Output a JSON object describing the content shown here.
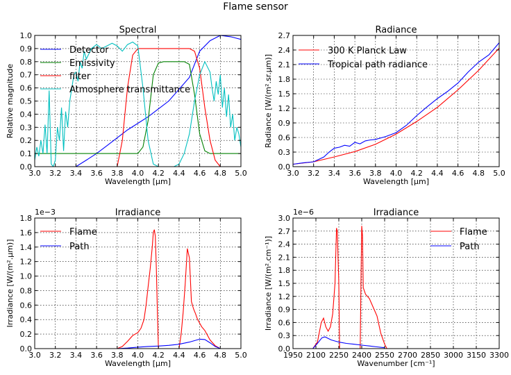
{
  "figure": {
    "suptitle": "Flame sensor"
  },
  "chart_data": [
    {
      "id": "spectral",
      "type": "line",
      "title": "Spectral",
      "xlabel": "Wavelength [μm]",
      "ylabel": "Relative magnitude",
      "xlim": [
        3.0,
        5.0
      ],
      "ylim": [
        0.0,
        1.0
      ],
      "xticks": [
        "3.0",
        "3.2",
        "3.4",
        "3.6",
        "3.8",
        "4.0",
        "4.2",
        "4.4",
        "4.6",
        "4.8",
        "5.0"
      ],
      "yticks": [
        "0.0",
        "0.1",
        "0.2",
        "0.3",
        "0.4",
        "0.5",
        "0.6",
        "0.7",
        "0.8",
        "0.9",
        "1.0"
      ],
      "grid": true,
      "legend": "top-left",
      "series": [
        {
          "name": "Detector",
          "color": "#0000ff",
          "x": [
            3.0,
            3.35,
            3.4,
            3.5,
            3.6,
            3.7,
            3.8,
            3.9,
            4.0,
            4.1,
            4.2,
            4.3,
            4.4,
            4.5,
            4.6,
            4.7,
            4.8,
            4.9,
            5.0
          ],
          "y": [
            0.0,
            0.0,
            0.0,
            0.05,
            0.1,
            0.16,
            0.22,
            0.28,
            0.33,
            0.38,
            0.44,
            0.5,
            0.59,
            0.68,
            0.88,
            0.96,
            1.0,
            0.99,
            0.97
          ]
        },
        {
          "name": "Emissivity",
          "color": "#008000",
          "x": [
            3.0,
            4.0,
            4.05,
            4.1,
            4.15,
            4.2,
            4.25,
            4.35,
            4.45,
            4.5,
            4.55,
            4.6,
            4.65,
            4.7,
            5.0
          ],
          "y": [
            0.1,
            0.1,
            0.15,
            0.35,
            0.7,
            0.79,
            0.8,
            0.8,
            0.8,
            0.78,
            0.55,
            0.25,
            0.12,
            0.1,
            0.1
          ]
        },
        {
          "name": "filter",
          "color": "#ff0000",
          "x": [
            3.0,
            3.8,
            3.85,
            3.9,
            3.95,
            4.0,
            4.1,
            4.3,
            4.5,
            4.55,
            4.6,
            4.65,
            4.7,
            4.75,
            4.8,
            5.0
          ],
          "y": [
            0.0,
            0.0,
            0.2,
            0.6,
            0.85,
            0.9,
            0.9,
            0.9,
            0.9,
            0.88,
            0.75,
            0.45,
            0.2,
            0.05,
            0.0,
            0.0
          ]
        },
        {
          "name": "Atmosphere transmittance",
          "color": "#00bfbf",
          "x": [
            3.0,
            3.02,
            3.04,
            3.06,
            3.08,
            3.1,
            3.12,
            3.14,
            3.16,
            3.18,
            3.2,
            3.22,
            3.24,
            3.26,
            3.28,
            3.3,
            3.32,
            3.34,
            3.36,
            3.38,
            3.4,
            3.42,
            3.44,
            3.46,
            3.48,
            3.5,
            3.55,
            3.6,
            3.65,
            3.7,
            3.75,
            3.8,
            3.85,
            3.9,
            3.95,
            4.0,
            4.05,
            4.1,
            4.15,
            4.2,
            4.25,
            4.3,
            4.35,
            4.4,
            4.45,
            4.5,
            4.55,
            4.6,
            4.65,
            4.7,
            4.72,
            4.74,
            4.76,
            4.78,
            4.8,
            4.82,
            4.84,
            4.86,
            4.88,
            4.9,
            4.92,
            4.94,
            4.96,
            4.98,
            5.0
          ],
          "y": [
            0.05,
            0.15,
            0.08,
            0.2,
            0.1,
            0.32,
            0.1,
            0.58,
            0.02,
            0.0,
            0.05,
            0.3,
            0.2,
            0.45,
            0.12,
            0.42,
            0.3,
            0.5,
            0.6,
            0.7,
            0.72,
            0.65,
            0.8,
            0.75,
            0.88,
            0.82,
            0.9,
            0.93,
            0.9,
            0.92,
            0.94,
            0.92,
            0.88,
            0.93,
            0.95,
            0.92,
            0.6,
            0.2,
            0.02,
            0.0,
            0.0,
            0.0,
            0.0,
            0.02,
            0.1,
            0.25,
            0.5,
            0.7,
            0.8,
            0.72,
            0.6,
            0.5,
            0.65,
            0.55,
            0.7,
            0.45,
            0.6,
            0.38,
            0.55,
            0.3,
            0.4,
            0.2,
            0.3,
            0.25,
            0.15
          ]
        }
      ]
    },
    {
      "id": "radiance",
      "type": "line",
      "title": "Radiance",
      "xlabel": "Wavelength [μm]",
      "ylabel": "Radiance [W/(m².sr.μm)]",
      "xlim": [
        3.0,
        5.0
      ],
      "ylim": [
        0.0,
        2.7
      ],
      "xticks": [
        "3.0",
        "3.2",
        "3.4",
        "3.6",
        "3.8",
        "4.0",
        "4.2",
        "4.4",
        "4.6",
        "4.8",
        "5.0"
      ],
      "yticks": [
        "0.0",
        "0.3",
        "0.6",
        "0.9",
        "1.2",
        "1.5",
        "1.8",
        "2.1",
        "2.4",
        "2.7"
      ],
      "grid": true,
      "legend": "top-left",
      "series": [
        {
          "name": "300 K Planck Law",
          "color": "#ff0000",
          "x": [
            3.0,
            3.2,
            3.4,
            3.6,
            3.8,
            4.0,
            4.2,
            4.4,
            4.6,
            4.8,
            5.0
          ],
          "y": [
            0.05,
            0.1,
            0.2,
            0.31,
            0.46,
            0.67,
            0.93,
            1.22,
            1.58,
            1.98,
            2.44
          ]
        },
        {
          "name": "Tropical path radiance",
          "color": "#0000ff",
          "x": [
            3.0,
            3.1,
            3.2,
            3.3,
            3.35,
            3.4,
            3.45,
            3.5,
            3.55,
            3.6,
            3.65,
            3.7,
            3.75,
            3.8,
            3.9,
            4.0,
            4.1,
            4.2,
            4.3,
            4.4,
            4.5,
            4.6,
            4.7,
            4.8,
            4.9,
            5.0
          ],
          "y": [
            0.05,
            0.08,
            0.1,
            0.2,
            0.3,
            0.38,
            0.4,
            0.44,
            0.42,
            0.5,
            0.47,
            0.53,
            0.55,
            0.56,
            0.62,
            0.7,
            0.85,
            1.05,
            1.23,
            1.4,
            1.55,
            1.72,
            1.95,
            2.15,
            2.3,
            2.55
          ]
        }
      ]
    },
    {
      "id": "irradiance-wl",
      "type": "line",
      "title": "Irradiance",
      "xlabel": "Wavelength [μm]",
      "ylabel": "Irradiance [W/(m².μm)]",
      "offset": "1e−3",
      "xlim": [
        3.0,
        5.0
      ],
      "ylim": [
        0.0,
        1.8
      ],
      "xticks": [
        "3.0",
        "3.2",
        "3.4",
        "3.6",
        "3.8",
        "4.0",
        "4.2",
        "4.4",
        "4.6",
        "4.8",
        "5.0"
      ],
      "yticks": [
        "0.0",
        "0.2",
        "0.4",
        "0.6",
        "0.8",
        "1.0",
        "1.2",
        "1.4",
        "1.6",
        "1.8"
      ],
      "grid": true,
      "legend": "top-left",
      "series": [
        {
          "name": "Flame",
          "color": "#ff0000",
          "x": [
            3.8,
            3.85,
            3.9,
            3.95,
            4.0,
            4.03,
            4.06,
            4.08,
            4.1,
            4.12,
            4.14,
            4.15,
            4.16,
            4.17,
            4.18,
            4.19,
            4.2,
            4.4,
            4.42,
            4.44,
            4.46,
            4.48,
            4.5,
            4.52,
            4.54,
            4.56,
            4.58,
            4.6,
            4.62,
            4.65,
            4.7,
            4.75,
            4.8
          ],
          "y": [
            0.0,
            0.03,
            0.1,
            0.18,
            0.22,
            0.28,
            0.4,
            0.6,
            0.85,
            1.1,
            1.4,
            1.6,
            1.64,
            1.55,
            1.1,
            0.5,
            0.0,
            0.0,
            0.2,
            0.5,
            0.9,
            1.38,
            1.25,
            0.65,
            0.55,
            0.48,
            0.4,
            0.35,
            0.3,
            0.25,
            0.12,
            0.04,
            0.0
          ]
        },
        {
          "name": "Path",
          "color": "#0000ff",
          "x": [
            3.8,
            3.9,
            4.0,
            4.1,
            4.2,
            4.3,
            4.4,
            4.5,
            4.55,
            4.6,
            4.65,
            4.7,
            4.75,
            4.8
          ],
          "y": [
            0.0,
            0.008,
            0.02,
            0.03,
            0.035,
            0.045,
            0.06,
            0.09,
            0.11,
            0.13,
            0.125,
            0.08,
            0.03,
            0.0
          ]
        }
      ]
    },
    {
      "id": "irradiance-wn",
      "type": "line",
      "title": "Irradiance",
      "xlabel": "Wavenumber [cm⁻¹]",
      "ylabel": "Irradiance [W/(m².cm⁻¹)]",
      "offset": "1e−6",
      "xlim": [
        1950,
        3300
      ],
      "ylim": [
        0.0,
        3.0
      ],
      "xticks": [
        "1950",
        "2100",
        "2250",
        "2400",
        "2550",
        "2700",
        "2850",
        "3000",
        "3150",
        "3300"
      ],
      "yticks": [
        "0.0",
        "0.3",
        "0.6",
        "0.9",
        "1.2",
        "1.5",
        "1.8",
        "2.1",
        "2.4",
        "2.7",
        "3.0"
      ],
      "grid": true,
      "legend": "top-right",
      "series": [
        {
          "name": "Flame",
          "color": "#ff0000",
          "x": [
            2080,
            2110,
            2135,
            2150,
            2165,
            2180,
            2195,
            2210,
            2225,
            2235,
            2240,
            2250,
            2255,
            2390,
            2395,
            2400,
            2405,
            2410,
            2425,
            2450,
            2475,
            2500,
            2525,
            2550,
            2565
          ],
          "y": [
            0.0,
            0.15,
            0.6,
            0.7,
            0.5,
            0.4,
            0.5,
            0.8,
            1.5,
            2.77,
            2.7,
            1.5,
            0.0,
            0.0,
            1.5,
            2.82,
            2.6,
            1.4,
            1.25,
            1.15,
            0.95,
            0.75,
            0.35,
            0.1,
            0.0
          ]
        },
        {
          "name": "Path",
          "color": "#0000ff",
          "x": [
            2080,
            2110,
            2140,
            2160,
            2200,
            2250,
            2300,
            2350,
            2400,
            2450,
            2500,
            2550
          ],
          "y": [
            0.0,
            0.12,
            0.25,
            0.27,
            0.2,
            0.15,
            0.12,
            0.1,
            0.08,
            0.06,
            0.04,
            0.02
          ]
        }
      ]
    }
  ]
}
